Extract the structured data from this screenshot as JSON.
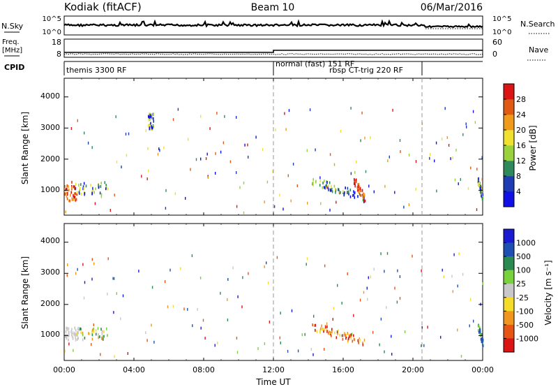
{
  "header": {
    "station": "Kodiak (fitACF)",
    "beam": "Beam 10",
    "date": "06/Mar/2016"
  },
  "nsky_panel": {
    "left_label": "N.Sky",
    "right_label": "N.Search",
    "tick_top": "10^5",
    "tick_bottom": "10^0",
    "right_tick_top": "10^5",
    "right_tick_bottom": "10^0"
  },
  "freq_panel": {
    "left_label_1": "Freq.",
    "left_label_2": "[MHz]",
    "right_label": "Nave",
    "left_ticks": [
      "18",
      "8"
    ],
    "right_ticks": [
      "60",
      "0"
    ]
  },
  "cpid": {
    "label": "CPID",
    "segments": [
      {
        "text": "themis 3300 RF",
        "start_hour": 0
      },
      {
        "text": "normal (fast) 151 RF",
        "start_hour": 12
      },
      {
        "text": "rbsp CT-trig 220 RF",
        "start_hour": 20.5
      }
    ]
  },
  "x_axis": {
    "title": "Time UT",
    "ticks": [
      {
        "label": "00:00",
        "hour": 0
      },
      {
        "label": "04:00",
        "hour": 4
      },
      {
        "label": "08:00",
        "hour": 8
      },
      {
        "label": "12:00",
        "hour": 12
      },
      {
        "label": "16:00",
        "hour": 16
      },
      {
        "label": "20:00",
        "hour": 20
      },
      {
        "label": "00:00",
        "hour": 24
      }
    ],
    "range": [
      0,
      24
    ]
  },
  "panels": [
    {
      "ylabel": "Slant Range [km]",
      "yticks": [
        "1000",
        "2000",
        "3000",
        "4000"
      ]
    },
    {
      "ylabel": "Slant Range [km]",
      "yticks": [
        "1000",
        "2000",
        "3000",
        "4000"
      ]
    }
  ],
  "power_scale": {
    "title": "Power [dB]",
    "labels": [
      "4",
      "8",
      "12",
      "16",
      "20",
      "24",
      "28"
    ],
    "colors": [
      "#1010e6",
      "#1e3cb4",
      "#2e8a5a",
      "#9ad23c",
      "#f0e030",
      "#f09a1c",
      "#e05a14",
      "#dc1414"
    ]
  },
  "velocity_scale": {
    "title": "Velocity [m s⁻¹]",
    "labels": [
      "1000",
      "500",
      "100",
      "25",
      "-25",
      "-100",
      "-500",
      "-1000"
    ],
    "colors": [
      "#1a1ad2",
      "#1e50b4",
      "#2a8a50",
      "#78d23c",
      "#c8c8c8",
      "#f5dc28",
      "#f0961e",
      "#e65514",
      "#dc1414"
    ]
  },
  "chart_data": {
    "type": "heatmap",
    "x_range": [
      0,
      24
    ],
    "y_range": [
      200,
      4600
    ],
    "x_boundaries_hours": [
      12,
      20.5
    ],
    "power_clusters": [
      {
        "t0": 0.0,
        "t1": 0.7,
        "r0": 700,
        "r1": 1200,
        "level": "high"
      },
      {
        "t0": 0.6,
        "t1": 2.5,
        "r0": 900,
        "r1": 1300,
        "level": "mixed"
      },
      {
        "t0": 4.8,
        "t1": 5.1,
        "r0": 3000,
        "r1": 3500,
        "level": "mixed"
      },
      {
        "t0": 14.2,
        "t1": 17.2,
        "r0": 700,
        "r1": 1400,
        "level": "mixed"
      },
      {
        "t0": 16.6,
        "t1": 17.2,
        "r0": 600,
        "r1": 1000,
        "level": "high"
      },
      {
        "t0": 23.7,
        "t1": 24.0,
        "r0": 700,
        "r1": 1000,
        "level": "mixed"
      }
    ],
    "velocity_clusters": [
      {
        "t0": 0.0,
        "t1": 0.8,
        "r0": 900,
        "r1": 1300,
        "level": "low"
      },
      {
        "t0": 0.6,
        "t1": 2.5,
        "r0": 900,
        "r1": 1300,
        "level": "mixed"
      },
      {
        "t0": 14.2,
        "t1": 17.2,
        "r0": 700,
        "r1": 1400,
        "level": "negative"
      },
      {
        "t0": 23.7,
        "t1": 24.0,
        "r0": 700,
        "r1": 1000,
        "level": "positive"
      }
    ]
  }
}
